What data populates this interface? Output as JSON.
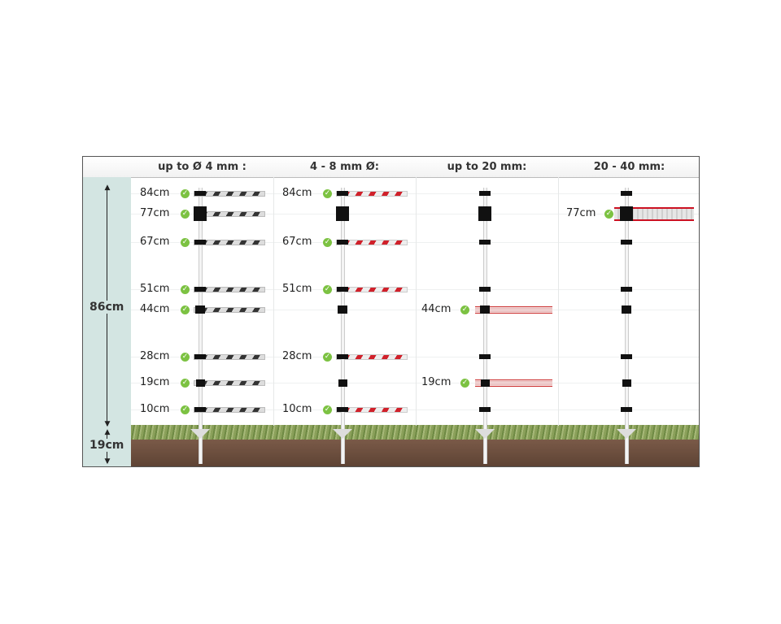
{
  "columns": [
    {
      "header": "up to Ø 4 mm :",
      "wire_type": "black-white-polywire",
      "wires": [
        "84cm",
        "77cm",
        "67cm",
        "51cm",
        "44cm",
        "28cm",
        "19cm",
        "10cm"
      ]
    },
    {
      "header": "4 - 8 mm Ø:",
      "wire_type": "red-white-polyrope",
      "wires": [
        "84cm",
        "67cm",
        "51cm",
        "28cm",
        "10cm"
      ]
    },
    {
      "header": "up to 20 mm:",
      "wire_type": "polytape",
      "wires": [
        "44cm",
        "19cm"
      ]
    },
    {
      "header": "20 - 40 mm:",
      "wire_type": "wide-tape",
      "wires": [
        "77cm"
      ]
    }
  ],
  "insulator_heights": [
    "84cm",
    "77cm",
    "67cm",
    "51cm",
    "44cm",
    "28cm",
    "19cm",
    "10cm"
  ],
  "dimensions": {
    "post_height": "86cm",
    "ground_depth": "19cm"
  },
  "colors": {
    "side_panel": "#d3e5e2",
    "check": "#7cc242",
    "red_wire": "#d0202a",
    "soil": "#6b4e3d",
    "grass": "#7f9a4e"
  },
  "icons": {
    "check": "check-circle-icon",
    "insulator": "insulator-icon"
  }
}
